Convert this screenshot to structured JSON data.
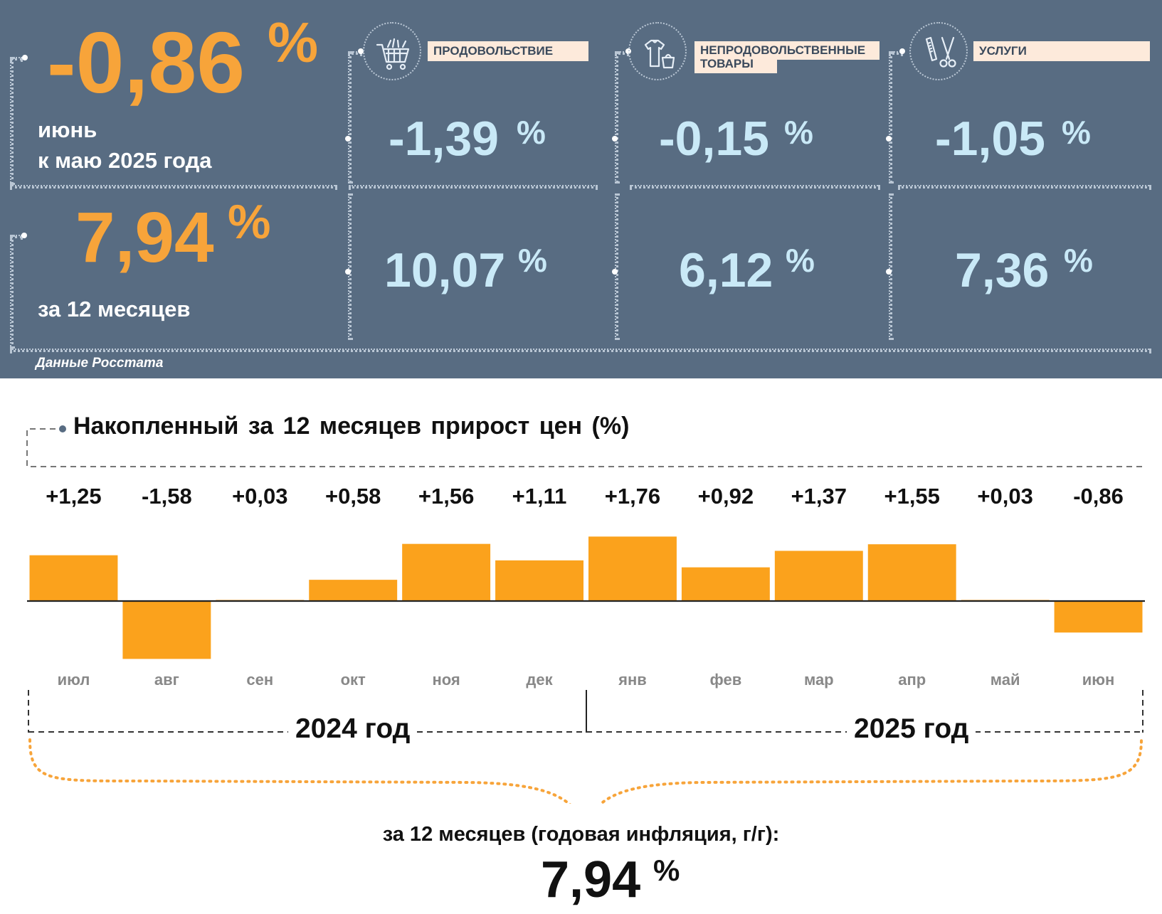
{
  "summary": {
    "monthly_value": "-0,86",
    "monthly_percent": "%",
    "monthly_caption_1": "июнь",
    "monthly_caption_2": "к маю 2025 года",
    "annual_value": "7,94",
    "annual_percent": "%",
    "annual_caption": "за 12 месяцев"
  },
  "categories": [
    {
      "icon": "shopping-cart-icon",
      "label": "ПРОДОВОЛЬСТВИЕ",
      "monthly": "-1,39",
      "annual": "10,07",
      "percent": "%"
    },
    {
      "icon": "clothing-bag-icon",
      "label_line1": "НЕПРОДОВОЛЬСТВЕННЫЕ",
      "label_line2": "ТОВАРЫ",
      "monthly": "-0,15",
      "annual": "6,12",
      "percent": "%"
    },
    {
      "icon": "scissors-comb-icon",
      "label": "УСЛУГИ",
      "monthly": "-1,05",
      "annual": "7,36",
      "percent": "%"
    }
  ],
  "source": "Данные Росстата",
  "colors": {
    "panel": "#586c82",
    "accent_orange": "#f7a43a",
    "value_blue": "#c9e9f7",
    "label_bg": "#fdeadb",
    "bar": "#fba21c"
  },
  "chart_data": {
    "type": "bar",
    "title": "Накопленный за 12 месяцев прирост цен (%)",
    "categories": [
      "июл",
      "авг",
      "сен",
      "окт",
      "ноя",
      "дек",
      "янв",
      "фев",
      "мар",
      "апр",
      "май",
      "июн"
    ],
    "values": [
      1.25,
      -1.58,
      0.03,
      0.58,
      1.56,
      1.11,
      1.76,
      0.92,
      1.37,
      1.55,
      0.03,
      -0.86
    ],
    "data_labels": [
      "+1,25",
      "-1,58",
      "+0,03",
      "+0,58",
      "+1,56",
      "+1,11",
      "+1,76",
      "+0,92",
      "+1,37",
      "+1,55",
      "+0,03",
      "-0,86"
    ],
    "groups": [
      {
        "label": "2024 год",
        "categories": [
          "июл",
          "авг",
          "сен",
          "окт",
          "ноя",
          "дек"
        ]
      },
      {
        "label": "2025 год",
        "categories": [
          "янв",
          "фев",
          "мар",
          "апр",
          "май",
          "июн"
        ]
      }
    ],
    "xlabel": "",
    "ylabel": "",
    "grid": false,
    "legend": "none"
  },
  "total": {
    "caption": "за 12 месяцев (годовая инфляция, г/г):",
    "value": "7,94",
    "percent": "%"
  }
}
